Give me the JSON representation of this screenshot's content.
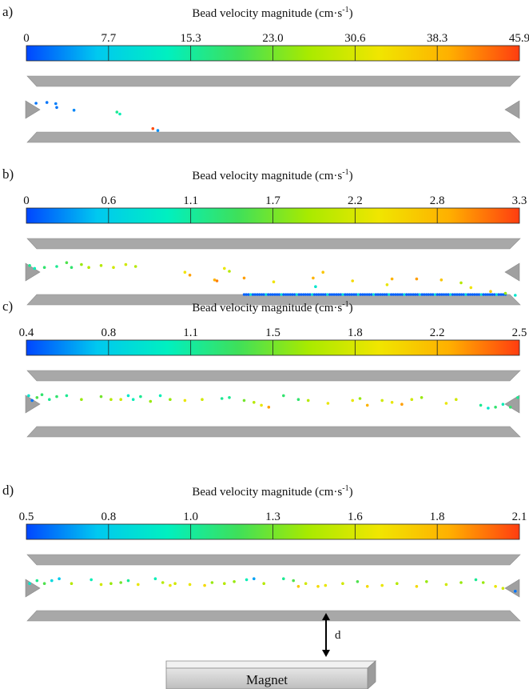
{
  "colors": {
    "plate": "#a8a8a8",
    "plate_edge": "#8e8e8e",
    "inlet": "#a0a0a0",
    "magnet_face": "#d9d9d9",
    "magnet_top": "#f2f2f2",
    "magnet_side": "#9a9a9a"
  },
  "colormap": [
    "#0046ff",
    "#00c8f0",
    "#00f0c0",
    "#3ee05a",
    "#a8ea00",
    "#f0e600",
    "#ffb000",
    "#ff3d10"
  ],
  "panels": [
    {
      "label": "a)",
      "scale_title": "Bead velocity magnitude (cm·s",
      "scale_superscript": "-1",
      "scale_close": ")",
      "ticks": [
        "0",
        "7.7",
        "15.3",
        "23.0",
        "30.6",
        "38.3",
        "45.9"
      ],
      "beads": [
        {
          "u": 0.018,
          "v": 0.46,
          "c": 0.05
        },
        {
          "u": 0.04,
          "v": 0.42,
          "c": 0.05
        },
        {
          "u": 0.058,
          "v": 0.48,
          "c": 0.06
        },
        {
          "u": 0.06,
          "v": 0.68,
          "c": 0.05
        },
        {
          "u": 0.095,
          "v": 0.82,
          "c": 0.07
        },
        {
          "u": 0.182,
          "v": 0.92,
          "c": 0.35
        },
        {
          "u": 0.188,
          "v": 1.02,
          "c": 0.3
        },
        {
          "u": 0.255,
          "v": 1.78,
          "c": 0.98
        },
        {
          "u": 0.265,
          "v": 1.88,
          "c": 0.08
        }
      ]
    },
    {
      "label": "b)",
      "scale_title": "Bead velocity magnitude (cm·s",
      "scale_superscript": "-1",
      "scale_close": ")",
      "ticks": [
        "0",
        "0.6",
        "1.1",
        "1.7",
        "2.2",
        "2.8",
        "3.3"
      ],
      "beads": [
        {
          "u": 0.005,
          "v": 0.45,
          "c": 0.35
        },
        {
          "u": 0.015,
          "v": 0.6,
          "c": 0.3
        },
        {
          "u": 0.035,
          "v": 0.55,
          "c": 0.4
        },
        {
          "u": 0.06,
          "v": 0.5,
          "c": 0.35
        },
        {
          "u": 0.08,
          "v": 0.3,
          "c": 0.45
        },
        {
          "u": 0.09,
          "v": 0.55,
          "c": 0.4
        },
        {
          "u": 0.11,
          "v": 0.4,
          "c": 0.55
        },
        {
          "u": 0.125,
          "v": 0.55,
          "c": 0.6
        },
        {
          "u": 0.15,
          "v": 0.45,
          "c": 0.6
        },
        {
          "u": 0.175,
          "v": 0.55,
          "c": 0.65
        },
        {
          "u": 0.2,
          "v": 0.4,
          "c": 0.65
        },
        {
          "u": 0.22,
          "v": 0.5,
          "c": 0.6
        },
        {
          "u": 0.32,
          "v": 0.8,
          "c": 0.72
        },
        {
          "u": 0.33,
          "v": 0.95,
          "c": 0.88
        },
        {
          "u": 0.38,
          "v": 1.2,
          "c": 0.85
        },
        {
          "u": 0.385,
          "v": 1.25,
          "c": 0.92
        },
        {
          "u": 0.4,
          "v": 0.6,
          "c": 0.7
        },
        {
          "u": 0.41,
          "v": 0.75,
          "c": 0.6
        },
        {
          "u": 0.44,
          "v": 1.1,
          "c": 0.88
        },
        {
          "u": 0.5,
          "v": 1.3,
          "c": 0.72
        },
        {
          "u": 0.58,
          "v": 1.1,
          "c": 0.85
        },
        {
          "u": 0.585,
          "v": 1.55,
          "c": 0.25
        },
        {
          "u": 0.6,
          "v": 0.8,
          "c": 0.8
        },
        {
          "u": 0.66,
          "v": 1.25,
          "c": 0.75
        },
        {
          "u": 0.73,
          "v": 1.45,
          "c": 0.7
        },
        {
          "u": 0.74,
          "v": 1.15,
          "c": 0.85
        },
        {
          "u": 0.79,
          "v": 1.15,
          "c": 0.88
        },
        {
          "u": 0.84,
          "v": 1.2,
          "c": 0.8
        },
        {
          "u": 0.88,
          "v": 1.35,
          "c": 0.6
        },
        {
          "u": 0.9,
          "v": 1.6,
          "c": 0.72
        },
        {
          "u": 0.94,
          "v": 1.8,
          "c": 0.78
        },
        {
          "u": 0.97,
          "v": 1.9,
          "c": 0.55
        },
        {
          "u": 0.99,
          "v": 2.0,
          "c": 0.25
        }
      ],
      "settled_row": {
        "u0": 0.44,
        "u1": 0.97,
        "v": 1.96,
        "count": 120,
        "c": 0.03
      }
    },
    {
      "label": "c)",
      "scale_title": "Bead velocity magnitude (cm·s",
      "scale_superscript": "-1",
      "scale_close": ")",
      "ticks": [
        "0.4",
        "0.8",
        "1.1",
        "1.5",
        "1.8",
        "2.2",
        "2.5"
      ],
      "beads": [
        {
          "u": 0.003,
          "v": 0.35,
          "c": 0.25
        },
        {
          "u": 0.01,
          "v": 0.6,
          "c": 0.05
        },
        {
          "u": 0.02,
          "v": 0.45,
          "c": 0.45
        },
        {
          "u": 0.03,
          "v": 0.3,
          "c": 0.4
        },
        {
          "u": 0.045,
          "v": 0.55,
          "c": 0.35
        },
        {
          "u": 0.06,
          "v": 0.4,
          "c": 0.4
        },
        {
          "u": 0.08,
          "v": 0.35,
          "c": 0.35
        },
        {
          "u": 0.11,
          "v": 0.55,
          "c": 0.55
        },
        {
          "u": 0.15,
          "v": 0.4,
          "c": 0.5
        },
        {
          "u": 0.17,
          "v": 0.55,
          "c": 0.6
        },
        {
          "u": 0.19,
          "v": 0.55,
          "c": 0.65
        },
        {
          "u": 0.205,
          "v": 0.35,
          "c": 0.25
        },
        {
          "u": 0.215,
          "v": 0.55,
          "c": 0.3
        },
        {
          "u": 0.23,
          "v": 0.4,
          "c": 0.35
        },
        {
          "u": 0.25,
          "v": 0.65,
          "c": 0.55
        },
        {
          "u": 0.27,
          "v": 0.35,
          "c": 0.3
        },
        {
          "u": 0.29,
          "v": 0.55,
          "c": 0.55
        },
        {
          "u": 0.32,
          "v": 0.6,
          "c": 0.7
        },
        {
          "u": 0.355,
          "v": 0.55,
          "c": 0.65
        },
        {
          "u": 0.395,
          "v": 0.5,
          "c": 0.35
        },
        {
          "u": 0.41,
          "v": 0.45,
          "c": 0.35
        },
        {
          "u": 0.44,
          "v": 0.6,
          "c": 0.5
        },
        {
          "u": 0.46,
          "v": 0.7,
          "c": 0.6
        },
        {
          "u": 0.475,
          "v": 0.85,
          "c": 0.7
        },
        {
          "u": 0.49,
          "v": 0.95,
          "c": 0.88
        },
        {
          "u": 0.52,
          "v": 0.35,
          "c": 0.4
        },
        {
          "u": 0.55,
          "v": 0.55,
          "c": 0.4
        },
        {
          "u": 0.57,
          "v": 0.6,
          "c": 0.6
        },
        {
          "u": 0.61,
          "v": 0.75,
          "c": 0.7
        },
        {
          "u": 0.66,
          "v": 0.6,
          "c": 0.7
        },
        {
          "u": 0.675,
          "v": 0.5,
          "c": 0.55
        },
        {
          "u": 0.69,
          "v": 0.85,
          "c": 0.85
        },
        {
          "u": 0.72,
          "v": 0.6,
          "c": 0.65
        },
        {
          "u": 0.74,
          "v": 0.7,
          "c": 0.7
        },
        {
          "u": 0.76,
          "v": 0.8,
          "c": 0.88
        },
        {
          "u": 0.78,
          "v": 0.55,
          "c": 0.65
        },
        {
          "u": 0.8,
          "v": 0.45,
          "c": 0.55
        },
        {
          "u": 0.85,
          "v": 0.75,
          "c": 0.7
        },
        {
          "u": 0.87,
          "v": 0.55,
          "c": 0.65
        },
        {
          "u": 0.92,
          "v": 0.85,
          "c": 0.35
        },
        {
          "u": 0.935,
          "v": 1.0,
          "c": 0.25
        },
        {
          "u": 0.95,
          "v": 0.95,
          "c": 0.4
        },
        {
          "u": 0.965,
          "v": 0.8,
          "c": 0.3
        },
        {
          "u": 0.98,
          "v": 0.95,
          "c": 0.4
        },
        {
          "u": 0.995,
          "v": 0.45,
          "c": 0.35
        }
      ]
    },
    {
      "label": "d)",
      "scale_title": "Bead velocity magnitude (cm·s",
      "scale_superscript": "-1",
      "scale_close": ")",
      "ticks": [
        "0.5",
        "0.8",
        "1.0",
        "1.3",
        "1.6",
        "1.8",
        "2.1"
      ],
      "beads": [
        {
          "u": 0.005,
          "v": 0.55,
          "c": 0.25
        },
        {
          "u": 0.02,
          "v": 0.4,
          "c": 0.35
        },
        {
          "u": 0.035,
          "v": 0.55,
          "c": 0.45
        },
        {
          "u": 0.05,
          "v": 0.4,
          "c": 0.2
        },
        {
          "u": 0.065,
          "v": 0.3,
          "c": 0.15
        },
        {
          "u": 0.09,
          "v": 0.55,
          "c": 0.6
        },
        {
          "u": 0.13,
          "v": 0.35,
          "c": 0.3
        },
        {
          "u": 0.15,
          "v": 0.6,
          "c": 0.65
        },
        {
          "u": 0.17,
          "v": 0.55,
          "c": 0.55
        },
        {
          "u": 0.19,
          "v": 0.5,
          "c": 0.5
        },
        {
          "u": 0.205,
          "v": 0.4,
          "c": 0.35
        },
        {
          "u": 0.225,
          "v": 0.6,
          "c": 0.7
        },
        {
          "u": 0.26,
          "v": 0.3,
          "c": 0.3
        },
        {
          "u": 0.275,
          "v": 0.5,
          "c": 0.6
        },
        {
          "u": 0.29,
          "v": 0.65,
          "c": 0.7
        },
        {
          "u": 0.3,
          "v": 0.55,
          "c": 0.65
        },
        {
          "u": 0.33,
          "v": 0.6,
          "c": 0.7
        },
        {
          "u": 0.36,
          "v": 0.65,
          "c": 0.75
        },
        {
          "u": 0.375,
          "v": 0.5,
          "c": 0.55
        },
        {
          "u": 0.4,
          "v": 0.55,
          "c": 0.6
        },
        {
          "u": 0.42,
          "v": 0.45,
          "c": 0.55
        },
        {
          "u": 0.445,
          "v": 0.35,
          "c": 0.3
        },
        {
          "u": 0.46,
          "v": 0.3,
          "c": 0.1
        },
        {
          "u": 0.48,
          "v": 0.55,
          "c": 0.6
        },
        {
          "u": 0.52,
          "v": 0.3,
          "c": 0.35
        },
        {
          "u": 0.54,
          "v": 0.4,
          "c": 0.45
        },
        {
          "u": 0.55,
          "v": 0.7,
          "c": 0.8
        },
        {
          "u": 0.565,
          "v": 0.55,
          "c": 0.65
        },
        {
          "u": 0.59,
          "v": 0.7,
          "c": 0.75
        },
        {
          "u": 0.605,
          "v": 0.65,
          "c": 0.7
        },
        {
          "u": 0.64,
          "v": 0.55,
          "c": 0.65
        },
        {
          "u": 0.67,
          "v": 0.45,
          "c": 0.45
        },
        {
          "u": 0.69,
          "v": 0.7,
          "c": 0.75
        },
        {
          "u": 0.72,
          "v": 0.65,
          "c": 0.7
        },
        {
          "u": 0.75,
          "v": 0.55,
          "c": 0.6
        },
        {
          "u": 0.79,
          "v": 0.7,
          "c": 0.75
        },
        {
          "u": 0.81,
          "v": 0.45,
          "c": 0.55
        },
        {
          "u": 0.85,
          "v": 0.6,
          "c": 0.65
        },
        {
          "u": 0.88,
          "v": 0.5,
          "c": 0.55
        },
        {
          "u": 0.91,
          "v": 0.35,
          "c": 0.35
        },
        {
          "u": 0.925,
          "v": 0.5,
          "c": 0.55
        },
        {
          "u": 0.95,
          "v": 0.7,
          "c": 0.7
        },
        {
          "u": 0.965,
          "v": 0.8,
          "c": 0.65
        },
        {
          "u": 0.99,
          "v": 0.95,
          "c": 0.05
        }
      ]
    }
  ],
  "distance_label": "d",
  "magnet_label": "Magnet"
}
